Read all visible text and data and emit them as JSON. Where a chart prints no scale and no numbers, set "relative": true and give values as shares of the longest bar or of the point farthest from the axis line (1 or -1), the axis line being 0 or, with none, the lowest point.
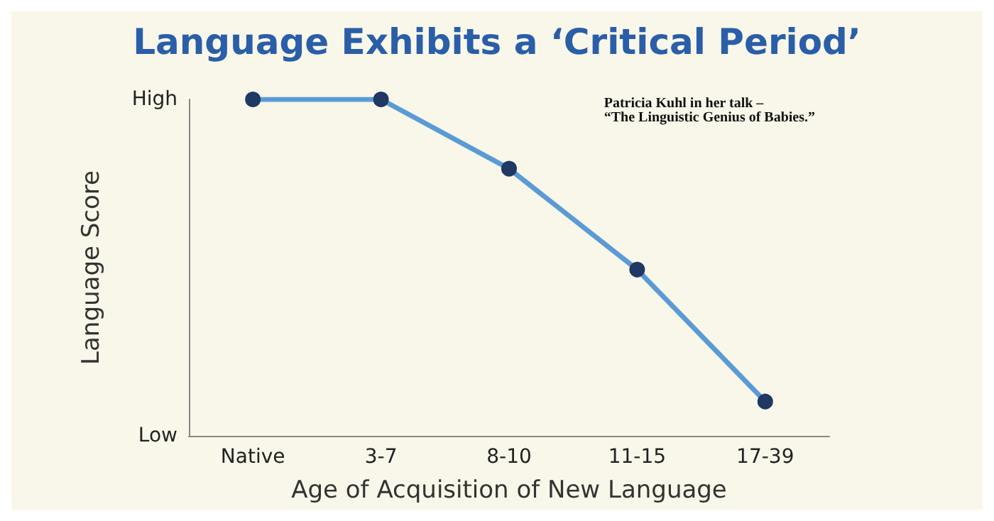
{
  "chart_data": {
    "type": "line",
    "title": "Language Exhibits a ‘Critical Period’",
    "xlabel": "Age of Acquisition of New Language",
    "ylabel": "Language Score",
    "categories": [
      "Native",
      "3-7",
      "8-10",
      "11-15",
      "17-39"
    ],
    "series": [
      {
        "color": "#5b9bd5",
        "values": [
          1,
          1,
          0.794,
          0.494,
          0.102
        ]
      }
    ],
    "relative": true,
    "annotations": [
      "High",
      "Low",
      "Patricia Kuhl in her talk –\n“The Linguistic Genius of Babies.”"
    ],
    "marker": "circle",
    "line_style": "solid",
    "grid": false
  }
}
